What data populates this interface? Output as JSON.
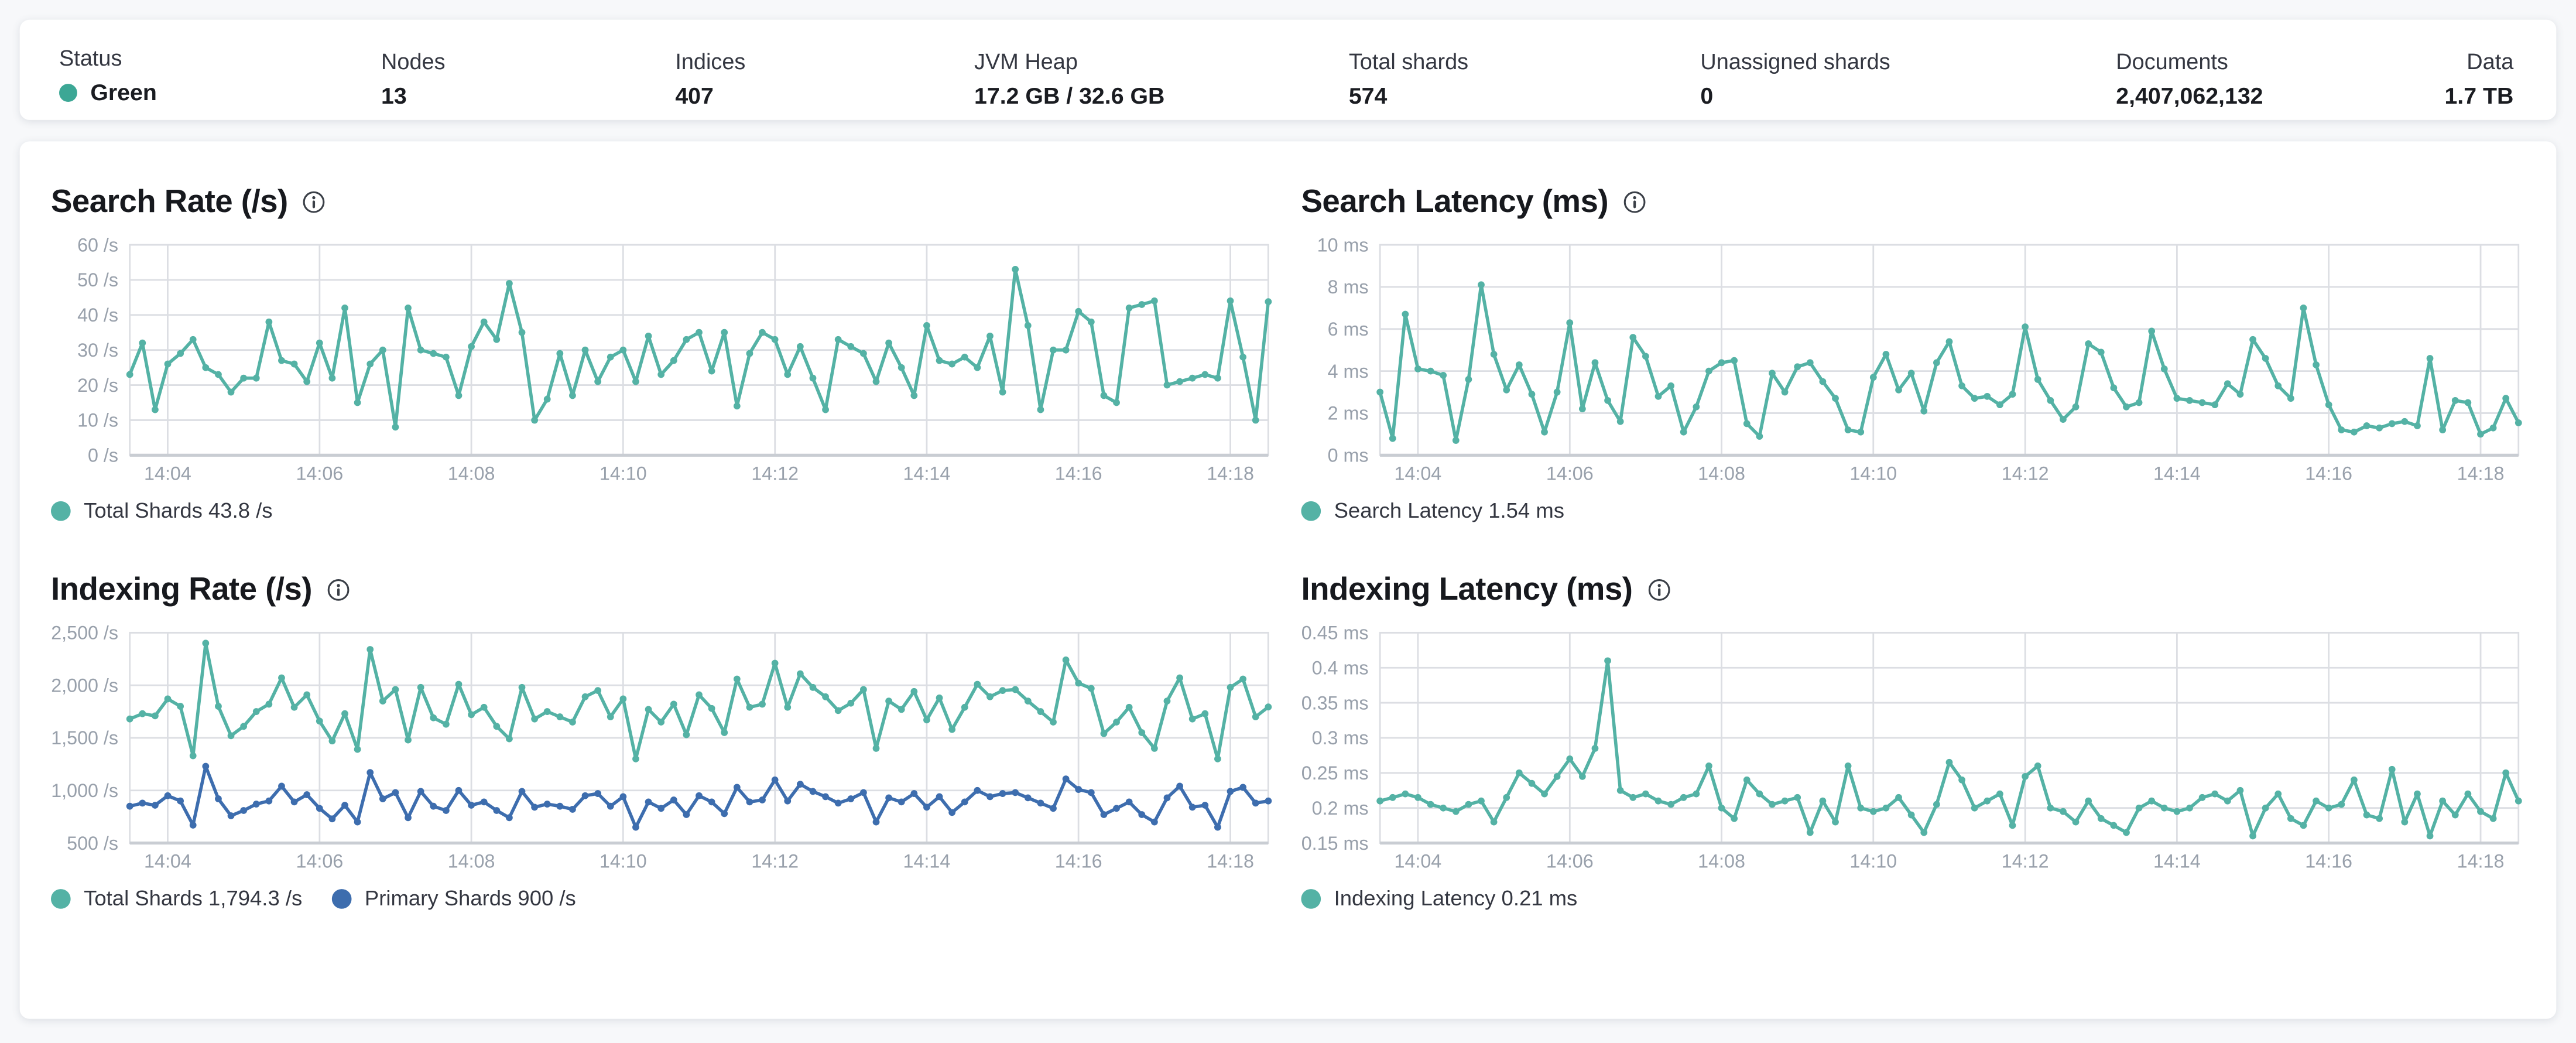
{
  "colors": {
    "teal": "#54B2A5",
    "blue": "#3D6DAE",
    "status_green": "#3CA795",
    "grid": "#DCDEE3",
    "axis_line": "#C9CDD3",
    "axis_text": "#98A0AB"
  },
  "status_bar": {
    "items": [
      {
        "label": "Status",
        "value": "Green"
      },
      {
        "label": "Nodes",
        "value": "13"
      },
      {
        "label": "Indices",
        "value": "407"
      },
      {
        "label": "JVM Heap",
        "value": "17.2 GB / 32.6 GB"
      },
      {
        "label": "Total shards",
        "value": "574"
      },
      {
        "label": "Unassigned shards",
        "value": "0"
      },
      {
        "label": "Documents",
        "value": "2,407,062,132"
      },
      {
        "label": "Data",
        "value": "1.7 TB"
      }
    ]
  },
  "chart_data": [
    {
      "type": "line",
      "title": "Search Rate (/s)",
      "xlabel": "",
      "ylabel": "/s",
      "x_window": [
        "14:03:30",
        "14:18:30"
      ],
      "x_axis": {
        "ticks": [
          {
            "f": 0.0333,
            "label": "14:04"
          },
          {
            "f": 0.1667,
            "label": "14:06"
          },
          {
            "f": 0.3,
            "label": "14:08"
          },
          {
            "f": 0.4333,
            "label": "14:10"
          },
          {
            "f": 0.5667,
            "label": "14:12"
          },
          {
            "f": 0.7,
            "label": "14:14"
          },
          {
            "f": 0.8333,
            "label": "14:16"
          },
          {
            "f": 0.9667,
            "label": "14:18"
          }
        ]
      },
      "y_axis": {
        "min": 0,
        "max": 60,
        "ticks": [
          {
            "v": 0,
            "label": "0 /s"
          },
          {
            "v": 10,
            "label": "10 /s"
          },
          {
            "v": 20,
            "label": "20 /s"
          },
          {
            "v": 30,
            "label": "30 /s"
          },
          {
            "v": 40,
            "label": "40 /s"
          },
          {
            "v": 50,
            "label": "50 /s"
          },
          {
            "v": 60,
            "label": "60 /s"
          }
        ]
      },
      "series": [
        {
          "name": "Total Shards",
          "color": "#54B2A5",
          "values": [
            23,
            32,
            13,
            26,
            29,
            33,
            25,
            23,
            18,
            22,
            22,
            38,
            27,
            26,
            21,
            32,
            22,
            42,
            15,
            26,
            30,
            8,
            42,
            30,
            29,
            28,
            17,
            31,
            38,
            33,
            49,
            35,
            10,
            16,
            29,
            17,
            30,
            21,
            28,
            30,
            21,
            34,
            23,
            27,
            33,
            35,
            24,
            35,
            14,
            29,
            35,
            33,
            23,
            31,
            22,
            13,
            33,
            31,
            29,
            21,
            32,
            25,
            17,
            37,
            27,
            26,
            28,
            25,
            34,
            18,
            53,
            37,
            13,
            30,
            30,
            41,
            38,
            17,
            15,
            42,
            43,
            44,
            20,
            21,
            22,
            23,
            22,
            44,
            28,
            10,
            43.8
          ]
        }
      ],
      "legend": [
        {
          "text": "Total Shards 43.8 /s",
          "color": "#54B2A5"
        }
      ]
    },
    {
      "type": "line",
      "title": "Search Latency (ms)",
      "xlabel": "",
      "ylabel": "ms",
      "x_window": [
        "14:03:30",
        "14:18:30"
      ],
      "x_axis": {
        "ticks": [
          {
            "f": 0.0333,
            "label": "14:04"
          },
          {
            "f": 0.1667,
            "label": "14:06"
          },
          {
            "f": 0.3,
            "label": "14:08"
          },
          {
            "f": 0.4333,
            "label": "14:10"
          },
          {
            "f": 0.5667,
            "label": "14:12"
          },
          {
            "f": 0.7,
            "label": "14:14"
          },
          {
            "f": 0.8333,
            "label": "14:16"
          },
          {
            "f": 0.9667,
            "label": "14:18"
          }
        ]
      },
      "y_axis": {
        "min": 0,
        "max": 10,
        "ticks": [
          {
            "v": 0,
            "label": "0 ms"
          },
          {
            "v": 2,
            "label": "2 ms"
          },
          {
            "v": 4,
            "label": "4 ms"
          },
          {
            "v": 6,
            "label": "6 ms"
          },
          {
            "v": 8,
            "label": "8 ms"
          },
          {
            "v": 10,
            "label": "10 ms"
          }
        ]
      },
      "series": [
        {
          "name": "Search Latency",
          "color": "#54B2A5",
          "values": [
            3.0,
            0.8,
            6.7,
            4.1,
            4.0,
            3.8,
            0.7,
            3.6,
            8.1,
            4.8,
            3.1,
            4.3,
            2.9,
            1.1,
            3.0,
            6.3,
            2.2,
            4.4,
            2.6,
            1.6,
            5.6,
            4.7,
            2.8,
            3.3,
            1.1,
            2.3,
            4.0,
            4.4,
            4.5,
            1.5,
            0.9,
            3.9,
            3.0,
            4.2,
            4.4,
            3.5,
            2.7,
            1.2,
            1.1,
            3.7,
            4.8,
            3.1,
            3.9,
            2.1,
            4.4,
            5.4,
            3.3,
            2.7,
            2.8,
            2.4,
            2.9,
            6.1,
            3.6,
            2.6,
            1.7,
            2.3,
            5.3,
            4.9,
            3.2,
            2.3,
            2.5,
            5.9,
            4.1,
            2.7,
            2.6,
            2.5,
            2.4,
            3.4,
            2.9,
            5.5,
            4.6,
            3.3,
            2.7,
            7.0,
            4.3,
            2.4,
            1.2,
            1.1,
            1.4,
            1.3,
            1.5,
            1.6,
            1.4,
            4.6,
            1.2,
            2.6,
            2.5,
            1.0,
            1.3,
            2.7,
            1.54
          ]
        }
      ],
      "legend": [
        {
          "text": "Search Latency 1.54 ms",
          "color": "#54B2A5"
        }
      ]
    },
    {
      "type": "line",
      "title": "Indexing Rate (/s)",
      "xlabel": "",
      "ylabel": "/s",
      "x_window": [
        "14:03:30",
        "14:18:30"
      ],
      "x_axis": {
        "ticks": [
          {
            "f": 0.0333,
            "label": "14:04"
          },
          {
            "f": 0.1667,
            "label": "14:06"
          },
          {
            "f": 0.3,
            "label": "14:08"
          },
          {
            "f": 0.4333,
            "label": "14:10"
          },
          {
            "f": 0.5667,
            "label": "14:12"
          },
          {
            "f": 0.7,
            "label": "14:14"
          },
          {
            "f": 0.8333,
            "label": "14:16"
          },
          {
            "f": 0.9667,
            "label": "14:18"
          }
        ]
      },
      "y_axis": {
        "min": 500,
        "max": 2500,
        "ticks": [
          {
            "v": 500,
            "label": "500 /s"
          },
          {
            "v": 1000,
            "label": "1,000 /s"
          },
          {
            "v": 1500,
            "label": "1,500 /s"
          },
          {
            "v": 2000,
            "label": "2,000 /s"
          },
          {
            "v": 2500,
            "label": "2,500 /s"
          }
        ]
      },
      "series": [
        {
          "name": "Total Shards",
          "color": "#54B2A5",
          "values": [
            1680,
            1730,
            1710,
            1870,
            1800,
            1330,
            2400,
            1800,
            1520,
            1610,
            1750,
            1820,
            2070,
            1790,
            1910,
            1660,
            1470,
            1730,
            1390,
            2340,
            1850,
            1960,
            1480,
            1980,
            1690,
            1630,
            2010,
            1720,
            1790,
            1610,
            1490,
            1980,
            1680,
            1750,
            1700,
            1650,
            1890,
            1950,
            1700,
            1870,
            1300,
            1770,
            1650,
            1820,
            1530,
            1910,
            1780,
            1550,
            2060,
            1790,
            1820,
            2210,
            1790,
            2110,
            1980,
            1890,
            1760,
            1830,
            1960,
            1400,
            1850,
            1770,
            1940,
            1670,
            1880,
            1580,
            1790,
            2010,
            1890,
            1950,
            1960,
            1850,
            1750,
            1650,
            2240,
            2020,
            1970,
            1540,
            1650,
            1790,
            1550,
            1400,
            1850,
            2070,
            1680,
            1730,
            1300,
            1980,
            2060,
            1700,
            1794.3
          ]
        },
        {
          "name": "Primary Shards",
          "color": "#3D6DAE",
          "values": [
            850,
            880,
            860,
            950,
            900,
            670,
            1230,
            920,
            760,
            810,
            870,
            900,
            1040,
            890,
            960,
            830,
            730,
            860,
            700,
            1170,
            920,
            980,
            740,
            990,
            850,
            810,
            1000,
            860,
            890,
            810,
            740,
            990,
            840,
            870,
            850,
            820,
            950,
            970,
            850,
            940,
            650,
            890,
            830,
            910,
            770,
            950,
            890,
            780,
            1030,
            890,
            910,
            1100,
            900,
            1060,
            990,
            940,
            880,
            920,
            980,
            700,
            930,
            890,
            970,
            840,
            940,
            790,
            890,
            1000,
            940,
            970,
            980,
            930,
            880,
            830,
            1110,
            1010,
            980,
            770,
            830,
            890,
            770,
            700,
            930,
            1040,
            840,
            860,
            650,
            990,
            1030,
            880,
            900
          ]
        }
      ],
      "legend": [
        {
          "text": "Total Shards 1,794.3 /s",
          "color": "#54B2A5"
        },
        {
          "text": "Primary Shards 900 /s",
          "color": "#3D6DAE"
        }
      ]
    },
    {
      "type": "line",
      "title": "Indexing Latency (ms)",
      "xlabel": "",
      "ylabel": "ms",
      "x_window": [
        "14:03:30",
        "14:18:30"
      ],
      "x_axis": {
        "ticks": [
          {
            "f": 0.0333,
            "label": "14:04"
          },
          {
            "f": 0.1667,
            "label": "14:06"
          },
          {
            "f": 0.3,
            "label": "14:08"
          },
          {
            "f": 0.4333,
            "label": "14:10"
          },
          {
            "f": 0.5667,
            "label": "14:12"
          },
          {
            "f": 0.7,
            "label": "14:14"
          },
          {
            "f": 0.8333,
            "label": "14:16"
          },
          {
            "f": 0.9667,
            "label": "14:18"
          }
        ]
      },
      "y_axis": {
        "min": 0.15,
        "max": 0.45,
        "ticks": [
          {
            "v": 0.15,
            "label": "0.15 ms"
          },
          {
            "v": 0.2,
            "label": "0.2 ms"
          },
          {
            "v": 0.25,
            "label": "0.25 ms"
          },
          {
            "v": 0.3,
            "label": "0.3 ms"
          },
          {
            "v": 0.35,
            "label": "0.35 ms"
          },
          {
            "v": 0.4,
            "label": "0.4 ms"
          },
          {
            "v": 0.45,
            "label": "0.45 ms"
          }
        ]
      },
      "series": [
        {
          "name": "Indexing Latency",
          "color": "#54B2A5",
          "values": [
            0.21,
            0.215,
            0.22,
            0.215,
            0.205,
            0.2,
            0.195,
            0.205,
            0.21,
            0.18,
            0.215,
            0.25,
            0.235,
            0.22,
            0.245,
            0.27,
            0.245,
            0.285,
            0.41,
            0.225,
            0.215,
            0.22,
            0.21,
            0.205,
            0.215,
            0.22,
            0.26,
            0.2,
            0.185,
            0.24,
            0.22,
            0.205,
            0.21,
            0.215,
            0.165,
            0.21,
            0.18,
            0.26,
            0.2,
            0.195,
            0.2,
            0.215,
            0.19,
            0.165,
            0.205,
            0.265,
            0.24,
            0.2,
            0.21,
            0.22,
            0.175,
            0.245,
            0.26,
            0.2,
            0.195,
            0.18,
            0.21,
            0.185,
            0.175,
            0.165,
            0.2,
            0.21,
            0.2,
            0.195,
            0.2,
            0.215,
            0.22,
            0.21,
            0.225,
            0.16,
            0.2,
            0.22,
            0.185,
            0.175,
            0.21,
            0.2,
            0.205,
            0.24,
            0.19,
            0.185,
            0.255,
            0.18,
            0.22,
            0.16,
            0.21,
            0.19,
            0.22,
            0.195,
            0.185,
            0.25,
            0.21
          ]
        }
      ],
      "legend": [
        {
          "text": "Indexing Latency 0.21 ms",
          "color": "#54B2A5"
        }
      ]
    }
  ]
}
